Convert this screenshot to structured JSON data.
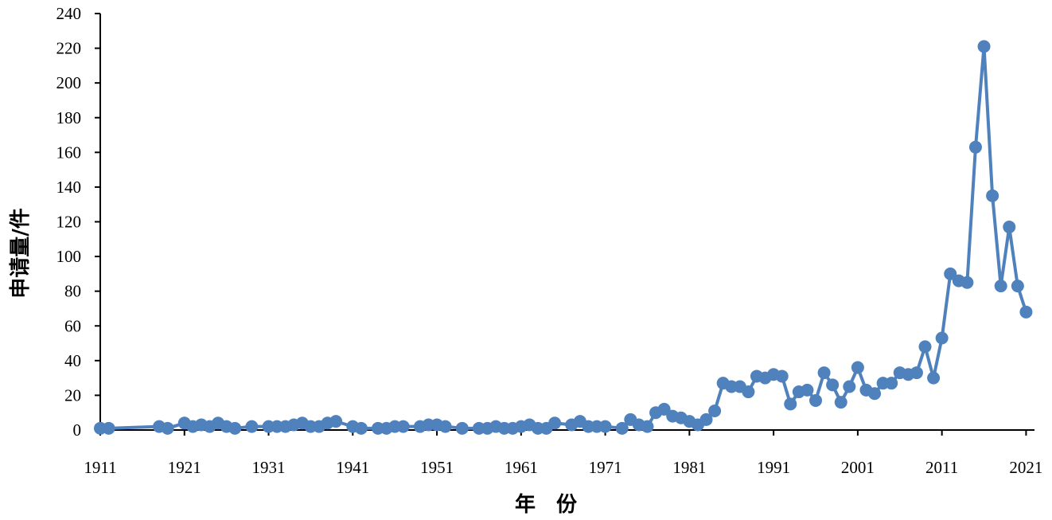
{
  "chart_data": {
    "type": "line",
    "title": "",
    "xlabel": "年　份",
    "ylabel": "申请量/件",
    "xlim": [
      1911,
      2022
    ],
    "ylim": [
      0,
      240
    ],
    "x_ticks": [
      1911,
      1921,
      1931,
      1941,
      1951,
      1961,
      1971,
      1981,
      1991,
      2001,
      2011,
      2021
    ],
    "y_ticks": [
      0,
      20,
      40,
      60,
      80,
      100,
      120,
      140,
      160,
      180,
      200,
      220,
      240
    ],
    "x_tick_labels": [
      "1911",
      "1921",
      "1931",
      "1941",
      "1951",
      "1961",
      "1971",
      "1981",
      "1991",
      "2001",
      "2011",
      "2021"
    ],
    "y_tick_labels": [
      "0",
      "20",
      "40",
      "60",
      "80",
      "100",
      "120",
      "140",
      "160",
      "180",
      "200",
      "220",
      "240"
    ],
    "grid": false,
    "legend": "none",
    "series": [
      {
        "color": "#4f81bd",
        "marker": "circle",
        "points": [
          [
            1911,
            1
          ],
          [
            1912,
            1
          ],
          [
            1918,
            2
          ],
          [
            1919,
            1
          ],
          [
            1921,
            4
          ],
          [
            1922,
            2
          ],
          [
            1923,
            3
          ],
          [
            1924,
            2
          ],
          [
            1925,
            4
          ],
          [
            1926,
            2
          ],
          [
            1927,
            1
          ],
          [
            1929,
            2
          ],
          [
            1931,
            2
          ],
          [
            1932,
            2
          ],
          [
            1933,
            2
          ],
          [
            1934,
            3
          ],
          [
            1935,
            4
          ],
          [
            1936,
            2
          ],
          [
            1937,
            2
          ],
          [
            1938,
            4
          ],
          [
            1939,
            5
          ],
          [
            1941,
            2
          ],
          [
            1942,
            1
          ],
          [
            1944,
            1
          ],
          [
            1945,
            1
          ],
          [
            1946,
            2
          ],
          [
            1947,
            2
          ],
          [
            1949,
            2
          ],
          [
            1950,
            3
          ],
          [
            1951,
            3
          ],
          [
            1952,
            2
          ],
          [
            1954,
            1
          ],
          [
            1956,
            1
          ],
          [
            1957,
            1
          ],
          [
            1958,
            2
          ],
          [
            1959,
            1
          ],
          [
            1960,
            1
          ],
          [
            1961,
            2
          ],
          [
            1962,
            3
          ],
          [
            1963,
            1
          ],
          [
            1964,
            1
          ],
          [
            1965,
            4
          ],
          [
            1967,
            3
          ],
          [
            1968,
            5
          ],
          [
            1969,
            2
          ],
          [
            1970,
            2
          ],
          [
            1971,
            2
          ],
          [
            1973,
            1
          ],
          [
            1974,
            6
          ],
          [
            1975,
            3
          ],
          [
            1976,
            2
          ],
          [
            1977,
            10
          ],
          [
            1978,
            12
          ],
          [
            1979,
            8
          ],
          [
            1980,
            7
          ],
          [
            1981,
            5
          ],
          [
            1982,
            3
          ],
          [
            1983,
            6
          ],
          [
            1984,
            11
          ],
          [
            1985,
            27
          ],
          [
            1986,
            25
          ],
          [
            1987,
            25
          ],
          [
            1988,
            22
          ],
          [
            1989,
            31
          ],
          [
            1990,
            30
          ],
          [
            1991,
            32
          ],
          [
            1992,
            31
          ],
          [
            1993,
            15
          ],
          [
            1994,
            22
          ],
          [
            1995,
            23
          ],
          [
            1996,
            17
          ],
          [
            1997,
            33
          ],
          [
            1998,
            26
          ],
          [
            1999,
            16
          ],
          [
            2000,
            25
          ],
          [
            2001,
            36
          ],
          [
            2002,
            23
          ],
          [
            2003,
            21
          ],
          [
            2004,
            27
          ],
          [
            2005,
            27
          ],
          [
            2006,
            33
          ],
          [
            2007,
            32
          ],
          [
            2008,
            33
          ],
          [
            2009,
            48
          ],
          [
            2010,
            30
          ],
          [
            2011,
            53
          ],
          [
            2012,
            90
          ],
          [
            2013,
            86
          ],
          [
            2014,
            85
          ],
          [
            2015,
            163
          ],
          [
            2016,
            221
          ],
          [
            2017,
            135
          ],
          [
            2018,
            83
          ],
          [
            2019,
            117
          ],
          [
            2020,
            83
          ],
          [
            2021,
            68
          ]
        ]
      }
    ]
  }
}
